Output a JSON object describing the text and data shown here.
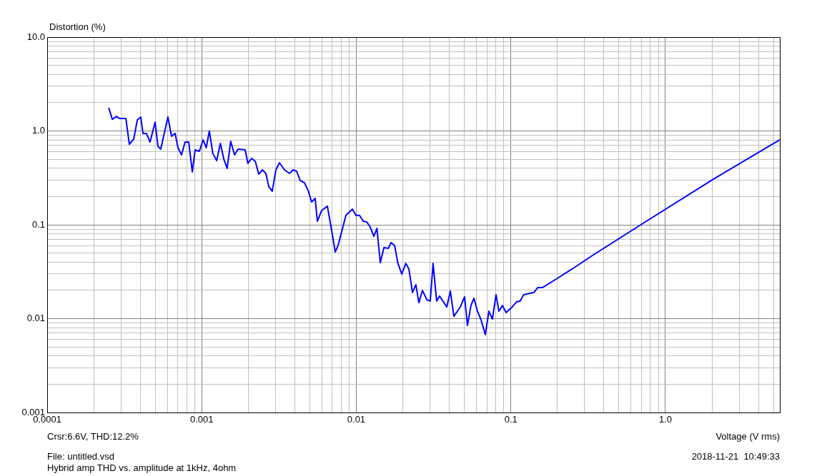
{
  "chart_data": {
    "type": "line",
    "ylabel": "Distortion (%)",
    "xlabel": "Voltage (V rms)",
    "log": "xy",
    "grid": true,
    "legend": false,
    "marker": "none",
    "line_style": "solid",
    "xlim": [
      0.0001,
      5.5
    ],
    "xticks": [
      0.0001,
      0.001,
      0.01,
      0.1,
      {
        "value": 1,
        "label": "1.0"
      }
    ],
    "ylim": [
      0.001,
      10
    ],
    "yticks": [
      {
        "value": 0.001,
        "label": "0.001"
      },
      {
        "value": 0.01,
        "label": "0.01"
      },
      {
        "value": 0.1,
        "label": "0.1"
      },
      {
        "value": 1,
        "label": "1.0"
      },
      {
        "value": 10,
        "label": "10.0"
      }
    ],
    "annotations": [
      "Crsr:6.6V, THD:12.2%",
      "File: untitled.vsd",
      "Hybrid amp THD vs. amplitude at 1kHz, 4ohm",
      "2018-11-21  10:49:33"
    ],
    "x": [
      0.00025,
      0.000264,
      0.000281,
      0.000293,
      0.000323,
      0.00034,
      0.000363,
      0.000383,
      0.000403,
      0.000417,
      0.000439,
      0.000463,
      0.000499,
      0.000521,
      0.000543,
      0.000604,
      0.000638,
      0.000673,
      0.000702,
      0.00074,
      0.00078,
      0.000824,
      0.000869,
      0.000906,
      0.000966,
      0.00102,
      0.00107,
      0.00112,
      0.00118,
      0.00125,
      0.00132,
      0.00139,
      0.00146,
      0.00154,
      0.00163,
      0.00172,
      0.00191,
      0.00199,
      0.0021,
      0.00222,
      0.00234,
      0.00247,
      0.0026,
      0.00272,
      0.00286,
      0.00302,
      0.00318,
      0.00343,
      0.0037,
      0.0039,
      0.00411,
      0.00434,
      0.00462,
      0.00488,
      0.00514,
      0.00542,
      0.0056,
      0.00597,
      0.0065,
      0.00685,
      0.00731,
      0.00762,
      0.00857,
      0.00944,
      0.00995,
      0.0105,
      0.0111,
      0.0117,
      0.0123,
      0.013,
      0.0136,
      0.0143,
      0.0151,
      0.0161,
      0.0168,
      0.0177,
      0.0186,
      0.0197,
      0.0209,
      0.0219,
      0.0231,
      0.0243,
      0.0254,
      0.0268,
      0.0286,
      0.0301,
      0.0314,
      0.0331,
      0.0346,
      0.0385,
      0.0406,
      0.0428,
      0.0471,
      0.0502,
      0.0524,
      0.0552,
      0.0577,
      0.0608,
      0.0641,
      0.0684,
      0.0721,
      0.076,
      0.0802,
      0.0837,
      0.0883,
      0.0931,
      0.102,
      0.109,
      0.115,
      0.121,
      0.141,
      0.149,
      0.16,
      0.2,
      0.245,
      0.337,
      0.719,
      2.08,
      5.5
    ],
    "series": [
      {
        "color": "#0000ff",
        "values": [
          1.77,
          1.33,
          1.43,
          1.36,
          1.36,
          0.723,
          0.818,
          1.31,
          1.41,
          0.94,
          0.94,
          0.762,
          1.24,
          0.687,
          0.64,
          1.41,
          0.877,
          0.94,
          0.663,
          0.556,
          0.762,
          0.762,
          0.366,
          0.628,
          0.607,
          0.804,
          0.663,
          1.0,
          0.575,
          0.483,
          0.736,
          0.501,
          0.399,
          0.776,
          0.556,
          0.64,
          0.628,
          0.451,
          0.509,
          0.475,
          0.347,
          0.385,
          0.353,
          0.253,
          0.228,
          0.385,
          0.459,
          0.385,
          0.353,
          0.385,
          0.372,
          0.296,
          0.281,
          0.232,
          0.175,
          0.191,
          0.109,
          0.142,
          0.158,
          0.0966,
          0.0514,
          0.0601,
          0.126,
          0.147,
          0.126,
          0.126,
          0.109,
          0.107,
          0.0948,
          0.0755,
          0.0916,
          0.0395,
          0.0571,
          0.0561,
          0.0646,
          0.0601,
          0.0388,
          0.0299,
          0.0388,
          0.0338,
          0.019,
          0.023,
          0.0148,
          0.02,
          0.0159,
          0.0154,
          0.0388,
          0.0154,
          0.0174,
          0.0133,
          0.0196,
          0.0106,
          0.0133,
          0.0171,
          0.00847,
          0.0138,
          0.0165,
          0.012,
          0.00975,
          0.00675,
          0.012,
          0.0099,
          0.018,
          0.012,
          0.0138,
          0.0116,
          0.0133,
          0.0151,
          0.0154,
          0.018,
          0.019,
          0.0214,
          0.0214,
          0.0269,
          0.0332,
          0.0471,
          0.104,
          0.312,
          0.804
        ]
      }
    ]
  }
}
